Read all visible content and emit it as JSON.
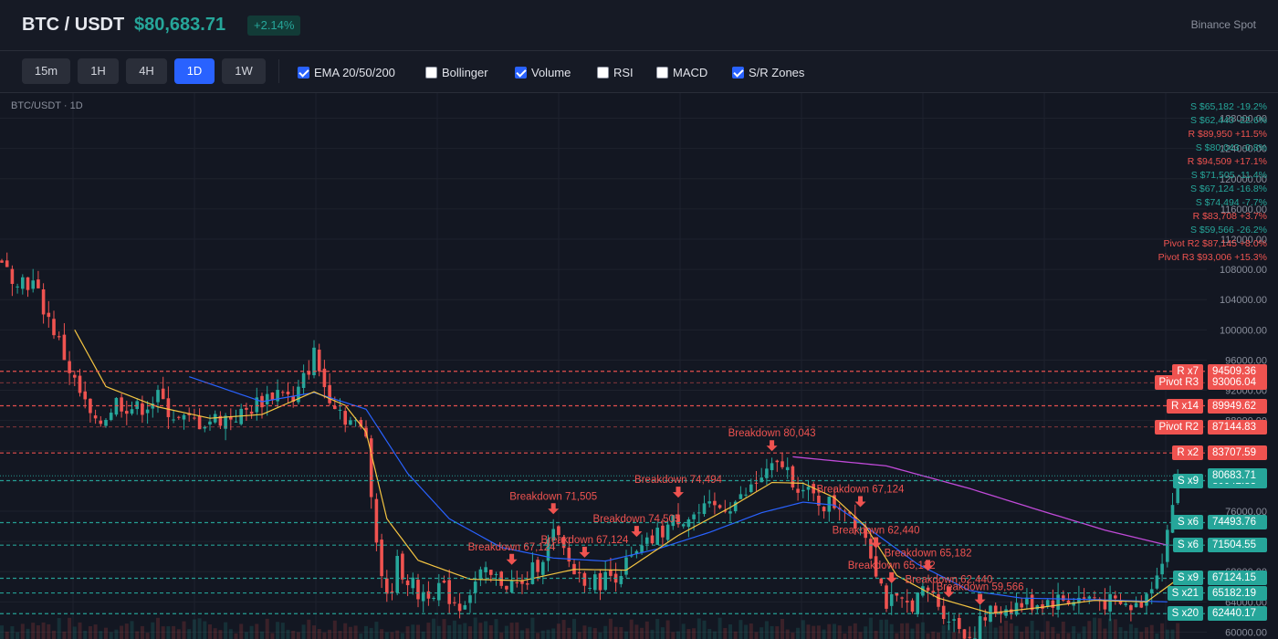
{
  "header": {
    "pair": "BTC / USDT",
    "price": "$80,683.71",
    "change": "+2.14%",
    "exchange": "Binance Spot"
  },
  "timeframes": [
    {
      "label": "15m",
      "active": false
    },
    {
      "label": "1H",
      "active": false
    },
    {
      "label": "4H",
      "active": false
    },
    {
      "label": "1D",
      "active": true
    },
    {
      "label": "1W",
      "active": false
    }
  ],
  "indicators": [
    {
      "label": "EMA 20/50/200",
      "checked": true
    },
    {
      "label": "Bollinger",
      "checked": false
    },
    {
      "label": "Volume",
      "checked": true
    },
    {
      "label": "RSI",
      "checked": false
    },
    {
      "label": "MACD",
      "checked": false
    },
    {
      "label": "S/R Zones",
      "checked": true
    }
  ],
  "chart": {
    "title": "BTC/USDT · 1D",
    "y_ticks": [
      "128000.00",
      "124000.00",
      "120000.00",
      "116000.00",
      "112000.00",
      "108000.00",
      "104000.00",
      "100000.00",
      "96000.00",
      "92000.00",
      "88000.00",
      "84000.00",
      "80000.00",
      "76000.00",
      "72000.00",
      "68000.00",
      "64000.00",
      "60000.00"
    ],
    "zone_list": [
      {
        "text": "S $65,182 -19.2%",
        "type": "support"
      },
      {
        "text": "S $62,440 -22.6%",
        "type": "support"
      },
      {
        "text": "R $89,950 +11.5%",
        "type": "resistance"
      },
      {
        "text": "S $80,043 -0.8%",
        "type": "support"
      },
      {
        "text": "R $94,509 +17.1%",
        "type": "resistance"
      },
      {
        "text": "S $71,505 -11.4%",
        "type": "support"
      },
      {
        "text": "S $67,124 -16.8%",
        "type": "support"
      },
      {
        "text": "S $74,494 -7.7%",
        "type": "support"
      },
      {
        "text": "R $83,708 +3.7%",
        "type": "resistance"
      },
      {
        "text": "S $59,566 -26.2%",
        "type": "support"
      },
      {
        "text": "Pivot R2 $87,145 +8.0%",
        "type": "resistance"
      },
      {
        "text": "Pivot R3 $93,006 +15.3%",
        "type": "resistance"
      }
    ],
    "levels": [
      {
        "label": "R x7",
        "value": "94509.36",
        "price": 94509.36,
        "type": "resistance"
      },
      {
        "label": "Pivot R3",
        "value": "93006.04",
        "price": 93006.04,
        "type": "pivot"
      },
      {
        "label": "R x14",
        "value": "89949.62",
        "price": 89949.62,
        "type": "resistance"
      },
      {
        "label": "Pivot R2",
        "value": "87144.83",
        "price": 87144.83,
        "type": "pivot"
      },
      {
        "label": "R x2",
        "value": "83707.59",
        "price": 83707.59,
        "type": "resistance"
      },
      {
        "label": "S x9",
        "value": "80042.83",
        "price": 80042.83,
        "type": "support"
      },
      {
        "label": "S x6",
        "value": "74493.76",
        "price": 74493.76,
        "type": "support"
      },
      {
        "label": "S x6",
        "value": "71504.55",
        "price": 71504.55,
        "type": "support"
      },
      {
        "label": "S x9",
        "value": "67124.15",
        "price": 67124.15,
        "type": "support"
      },
      {
        "label": "S x21",
        "value": "65182.19",
        "price": 65182.19,
        "type": "support"
      },
      {
        "label": "S x20",
        "value": "62440.17",
        "price": 62440.17,
        "type": "support"
      }
    ],
    "current_price": {
      "value": "80683.71",
      "price": 80683.71
    },
    "breakdowns": [
      {
        "text": "Breakdown 80,043",
        "x_index": 148
      },
      {
        "text": "Breakdown 71,505",
        "x_index": 106
      },
      {
        "text": "Breakdown 74,494",
        "x_index": 130
      },
      {
        "text": "Breakdown 74,505",
        "x_index": 122
      },
      {
        "text": "Breakdown 67,124",
        "x_index": 98
      },
      {
        "text": "Breakdown 67,124",
        "x_index": 112
      },
      {
        "text": "Breakdown 67,124",
        "x_index": 165
      },
      {
        "text": "Breakdown 65,182",
        "x_index": 178
      },
      {
        "text": "Breakdown 65,182",
        "x_index": 171
      },
      {
        "text": "Breakdown 62,440",
        "x_index": 182
      },
      {
        "text": "Breakdown 62,440",
        "x_index": 168
      },
      {
        "text": "Breakdown 59,566",
        "x_index": 188
      }
    ]
  },
  "colors": {
    "up": "#26a69a",
    "down": "#ef5350",
    "ema20": "#f5c542",
    "ema50": "#2962ff",
    "ema200": "#c04ad8",
    "accent": "#2962ff"
  },
  "chart_data": {
    "type": "candlestick",
    "xlabel": "",
    "ylabel": "",
    "ylim": [
      58000,
      130000
    ],
    "series": [
      {
        "name": "EMA 20",
        "style": "line"
      },
      {
        "name": "EMA 50",
        "style": "line"
      },
      {
        "name": "EMA 200",
        "style": "line"
      }
    ],
    "close_path": [
      [
        0,
        108000
      ],
      [
        6,
        106000
      ],
      [
        10,
        100000
      ],
      [
        14,
        93000
      ],
      [
        18,
        87000
      ],
      [
        22,
        90500
      ],
      [
        26,
        89500
      ],
      [
        30,
        91000
      ],
      [
        34,
        88000
      ],
      [
        38,
        87800
      ],
      [
        42,
        88300
      ],
      [
        46,
        88700
      ],
      [
        50,
        90800
      ],
      [
        54,
        92200
      ],
      [
        56,
        90000
      ],
      [
        60,
        96800
      ],
      [
        62,
        92500
      ],
      [
        66,
        88500
      ],
      [
        70,
        86200
      ],
      [
        72,
        72000
      ],
      [
        74,
        64000
      ],
      [
        76,
        69000
      ],
      [
        80,
        65000
      ],
      [
        84,
        66000
      ],
      [
        88,
        63500
      ],
      [
        92,
        67500
      ],
      [
        96,
        66800
      ],
      [
        100,
        65800
      ],
      [
        104,
        70300
      ],
      [
        106,
        73000
      ],
      [
        110,
        68000
      ],
      [
        114,
        66500
      ],
      [
        118,
        67800
      ],
      [
        122,
        70000
      ],
      [
        126,
        72800
      ],
      [
        130,
        75200
      ],
      [
        134,
        75600
      ],
      [
        138,
        76500
      ],
      [
        142,
        77500
      ],
      [
        146,
        80500
      ],
      [
        150,
        82200
      ],
      [
        154,
        78500
      ],
      [
        158,
        77000
      ],
      [
        162,
        76800
      ],
      [
        166,
        73000
      ],
      [
        170,
        64000
      ],
      [
        174,
        63500
      ],
      [
        178,
        65500
      ],
      [
        182,
        62000
      ],
      [
        186,
        59500
      ],
      [
        190,
        62500
      ],
      [
        194,
        63500
      ],
      [
        198,
        63800
      ],
      [
        202,
        64200
      ],
      [
        206,
        64300
      ],
      [
        210,
        64500
      ],
      [
        214,
        63500
      ],
      [
        218,
        63300
      ],
      [
        220,
        65000
      ],
      [
        223,
        70000
      ],
      [
        226,
        80683.71
      ]
    ],
    "ema20_path": [
      [
        14,
        100000
      ],
      [
        20,
        92500
      ],
      [
        30,
        89800
      ],
      [
        40,
        88300
      ],
      [
        50,
        88800
      ],
      [
        60,
        91800
      ],
      [
        66,
        90000
      ],
      [
        70,
        86500
      ],
      [
        74,
        75000
      ],
      [
        80,
        69500
      ],
      [
        90,
        67000
      ],
      [
        100,
        66800
      ],
      [
        110,
        68300
      ],
      [
        120,
        68200
      ],
      [
        130,
        72800
      ],
      [
        140,
        76500
      ],
      [
        148,
        79800
      ],
      [
        154,
        79700
      ],
      [
        160,
        77800
      ],
      [
        166,
        74000
      ],
      [
        172,
        67500
      ],
      [
        180,
        64500
      ],
      [
        190,
        62500
      ],
      [
        200,
        63300
      ],
      [
        210,
        64200
      ],
      [
        220,
        64000
      ],
      [
        226,
        67000
      ]
    ],
    "ema50_path": [
      [
        36,
        93800
      ],
      [
        50,
        90500
      ],
      [
        60,
        91700
      ],
      [
        70,
        89500
      ],
      [
        78,
        81000
      ],
      [
        86,
        75000
      ],
      [
        96,
        71200
      ],
      [
        106,
        69800
      ],
      [
        116,
        69400
      ],
      [
        126,
        71000
      ],
      [
        136,
        73200
      ],
      [
        146,
        75800
      ],
      [
        154,
        77200
      ],
      [
        160,
        76800
      ],
      [
        168,
        73000
      ],
      [
        176,
        69000
      ],
      [
        186,
        65500
      ],
      [
        196,
        64500
      ],
      [
        210,
        64300
      ],
      [
        224,
        64000
      ]
    ],
    "ema200_path": [
      [
        152,
        83200
      ],
      [
        170,
        82000
      ],
      [
        186,
        79000
      ],
      [
        200,
        76000
      ],
      [
        212,
        73500
      ],
      [
        224,
        71500
      ]
    ]
  }
}
